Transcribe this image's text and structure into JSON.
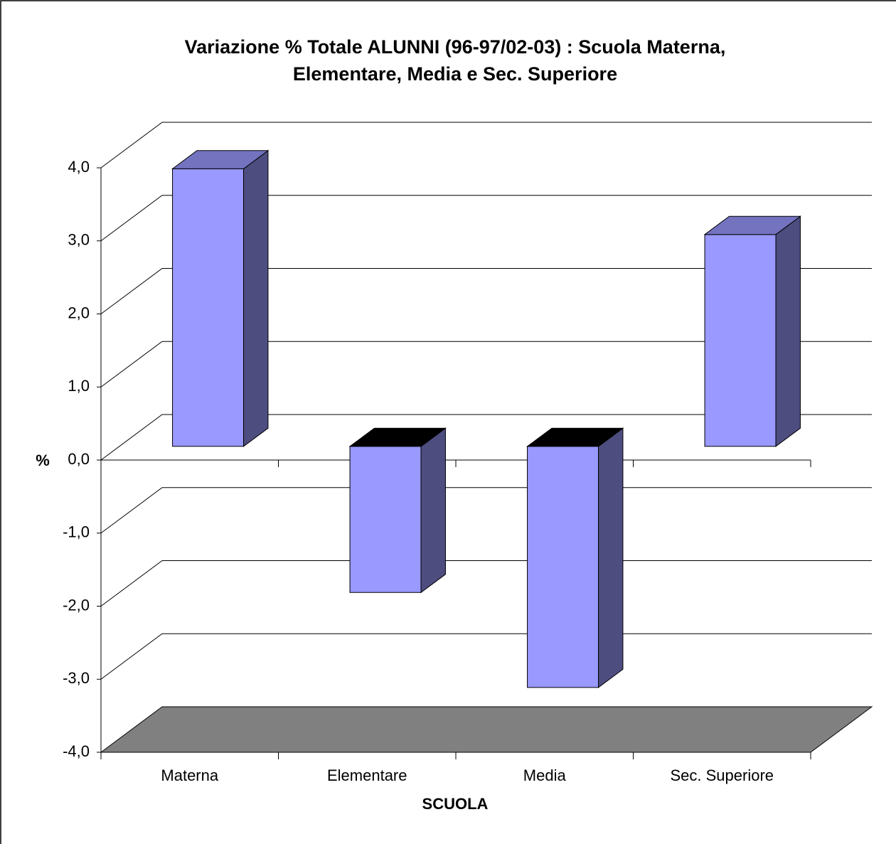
{
  "chart_data": {
    "type": "bar3d",
    "title": [
      "Variazione %  Totale ALUNNI (96-97/02-03) : Scuola Materna,",
      "Elementare, Media e Sec. Superiore"
    ],
    "x_label": "SCUOLA",
    "y_label": "%",
    "categories": [
      "Materna",
      "Elementare",
      "Media",
      "Sec. Superiore"
    ],
    "values": [
      3.8,
      -2.0,
      -3.3,
      2.9
    ],
    "color": "#9999ff",
    "ylim": [
      -4,
      4
    ],
    "yticks": [
      {
        "value": -4,
        "label": "-4,0"
      },
      {
        "value": -3,
        "label": "-3,0"
      },
      {
        "value": -2,
        "label": "-2,0"
      },
      {
        "value": -1,
        "label": "-1,0"
      },
      {
        "value": 0,
        "label": "0,0"
      },
      {
        "value": 1,
        "label": "1,0"
      },
      {
        "value": 2,
        "label": "2,0"
      },
      {
        "value": 3,
        "label": "3,0"
      },
      {
        "value": 4,
        "label": "4,0"
      }
    ],
    "grid": true
  }
}
